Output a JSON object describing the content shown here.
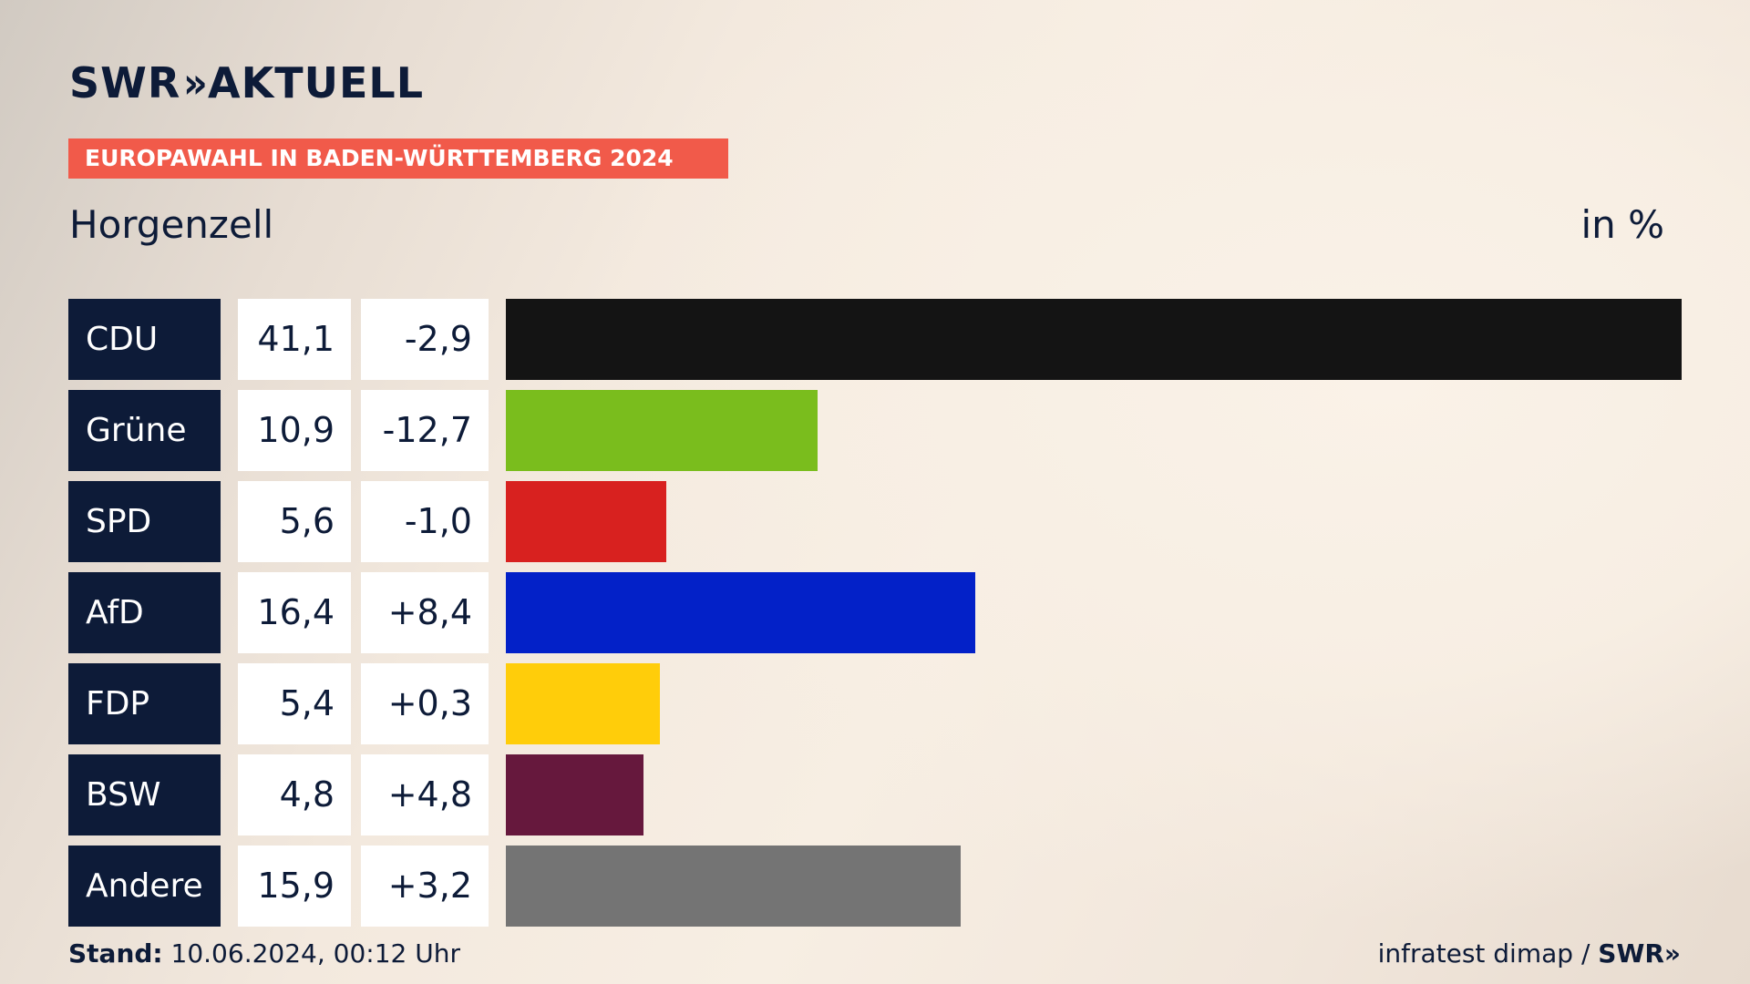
{
  "header": {
    "logo_text": "SWR",
    "logo_chevrons": "»",
    "logo_suffix": "AKTUELL",
    "badge": "EUROPAWAHL IN BADEN-WÜRTTEMBERG 2024",
    "place": "Horgenzell",
    "unit": "in %"
  },
  "chart_data": {
    "type": "bar",
    "title": "EUROPAWAHL IN BADEN-WÜRTTEMBERG 2024",
    "subtitle": "Horgenzell",
    "unit": "in %",
    "orientation": "horizontal",
    "categories": [
      "CDU",
      "Grüne",
      "SPD",
      "AfD",
      "FDP",
      "BSW",
      "Andere"
    ],
    "values": [
      41.1,
      10.9,
      5.6,
      16.4,
      5.4,
      4.8,
      15.9
    ],
    "value_labels": [
      "41,1",
      "10,9",
      "5,6",
      "16,4",
      "5,4",
      "4,8",
      "15,9"
    ],
    "diff_labels": [
      "-2,9",
      "-12,7",
      "-1,0",
      "+8,4",
      "+0,3",
      "+4,8",
      "+3,2"
    ],
    "diffs": [
      -2.9,
      -12.7,
      -1.0,
      8.4,
      0.3,
      4.8,
      3.2
    ],
    "colors": [
      "#141414",
      "#7abd1d",
      "#d8211f",
      "#0321c8",
      "#ffcd0a",
      "#66183d",
      "#747474"
    ],
    "xlim": [
      0,
      41.1
    ],
    "grid": false,
    "legend": "none"
  },
  "footer": {
    "stand_label": "Stand:",
    "stand_value": "10.06.2024, 00:12 Uhr",
    "source": "infratest dimap /",
    "source_logo": "SWR»"
  }
}
